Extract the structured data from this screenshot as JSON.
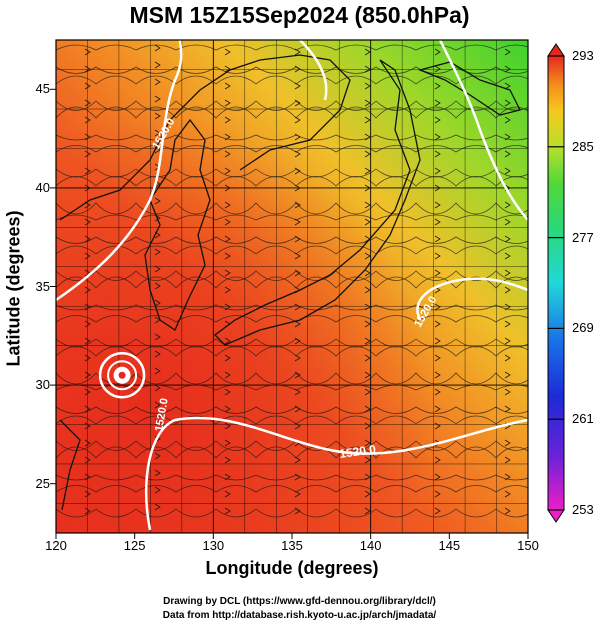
{
  "title": "MSM 15Z15Sep2024 (850.0hPa)",
  "xlabel": "Longitude (degrees)",
  "ylabel": "Latitude  (degrees)",
  "x_ticks": [
    "120",
    "125",
    "130",
    "135",
    "140",
    "145",
    "150"
  ],
  "y_ticks": [
    "25",
    "30",
    "35",
    "40",
    "45"
  ],
  "colorbar_ticks": [
    "293",
    "285",
    "277",
    "269",
    "261",
    "253"
  ],
  "contour_labels": [
    "1520.0",
    "1520.0",
    "1520.0",
    "1520.0"
  ],
  "footer_line1": "Drawing by DCL (https://www.gfd-dennou.org/library/dcl/)",
  "footer_line2": "Data from http://database.rish.kyoto-u.ac.jp/arch/jmadata/",
  "colors": {
    "warm": "#f03a1e",
    "mid": "#f5a020",
    "cool": "#3ccd2c",
    "contour": "#ffffff",
    "marker": "#e8262a"
  },
  "chart_data": {
    "type": "heatmap",
    "title": "MSM 15Z15Sep2024 (850.0hPa)",
    "xlabel": "Longitude (degrees)",
    "ylabel": "Latitude  (degrees)",
    "xlim": [
      120,
      150
    ],
    "ylim": [
      22.5,
      47.5
    ],
    "colorbar_range": [
      253,
      293
    ],
    "contour_value": 1520.0,
    "typhoon_center": [
      124.2,
      30.5
    ]
  }
}
